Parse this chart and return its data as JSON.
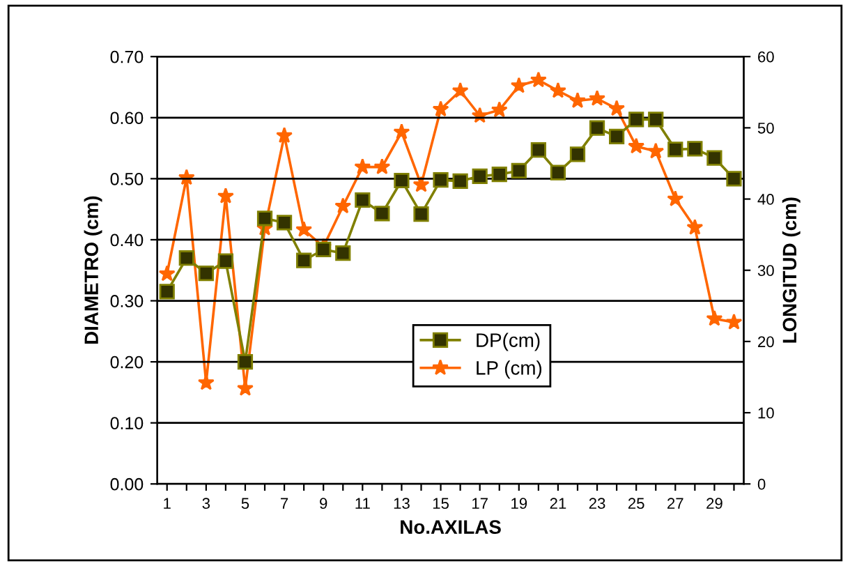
{
  "chart_data": {
    "type": "line",
    "xlabel": "No.AXILAS",
    "ylabel": "DIAMETRO (cm)",
    "y2label": "LONGITUD (cm)",
    "categories": [
      "1",
      null,
      "3",
      null,
      "5",
      null,
      "7",
      null,
      "9",
      null,
      "11",
      null,
      "13",
      null,
      "15",
      null,
      "17",
      null,
      "19",
      null,
      "21",
      null,
      "23",
      null,
      "25",
      null,
      "27",
      null,
      "29",
      null
    ],
    "series": [
      {
        "name": "DP(cm)",
        "color": "#808000",
        "marker": "square",
        "values": [
          0.315,
          0.37,
          0.345,
          0.365,
          0.2,
          0.435,
          0.428,
          0.366,
          0.384,
          0.378,
          0.465,
          0.443,
          0.497,
          0.442,
          0.498,
          0.496,
          0.504,
          0.507,
          0.513,
          0.547,
          0.51,
          0.54,
          0.583,
          0.569,
          0.597,
          0.597,
          0.548,
          0.549,
          0.534,
          0.5
        ]
      },
      {
        "name": "LP (cm)",
        "color": "#ff6600",
        "marker": "star",
        "axis": "y2",
        "values": [
          29.5,
          43.0,
          14.2,
          40.4,
          13.4,
          35.9,
          48.9,
          35.7,
          33.3,
          39.0,
          44.5,
          44.5,
          49.4,
          42.0,
          52.6,
          55.2,
          51.7,
          52.5,
          55.9,
          56.7,
          55.2,
          53.8,
          54.1,
          52.7,
          47.4,
          46.7,
          40.0,
          36.0,
          23.2,
          22.7
        ]
      }
    ],
    "ylim": [
      0,
      0.7
    ],
    "yticks": [
      {
        "value": 0,
        "label": "0.00"
      },
      {
        "value": 0.1,
        "label": "0.10"
      },
      {
        "value": 0.2,
        "label": "0.20"
      },
      {
        "value": 0.3,
        "label": "0.30"
      },
      {
        "value": 0.4,
        "label": "0.40"
      },
      {
        "value": 0.5,
        "label": "0.50"
      },
      {
        "value": 0.6,
        "label": "0.60"
      },
      {
        "value": 0.7,
        "label": "0.70"
      }
    ],
    "y2lim": [
      0,
      60
    ],
    "y2ticks": [
      0,
      10,
      20,
      30,
      40,
      50,
      60
    ],
    "grid": "y",
    "legend": "center"
  }
}
